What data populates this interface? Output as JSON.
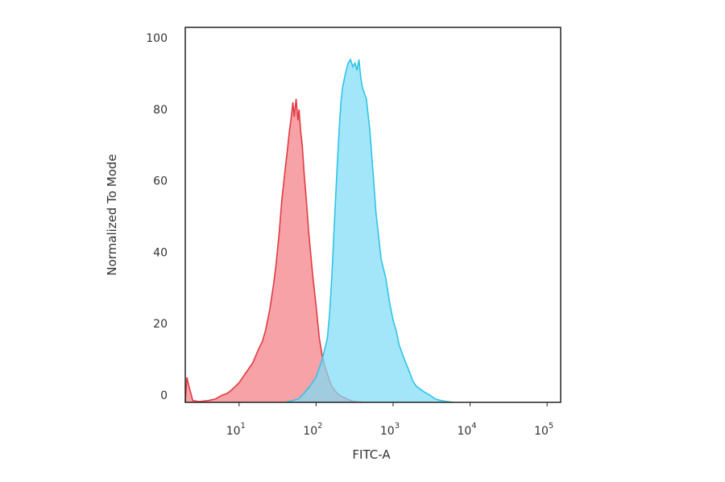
{
  "chart_data": {
    "type": "area",
    "xlabel": "FITC-A",
    "ylabel": "Normalized To Mode",
    "x_scale": "log",
    "xlim": [
      2,
      150000
    ],
    "ylim": [
      0,
      105
    ],
    "x_ticks": [
      {
        "value": 10,
        "base": "10",
        "exp": "1"
      },
      {
        "value": 100,
        "base": "10",
        "exp": "2"
      },
      {
        "value": 1000,
        "base": "10",
        "exp": "3"
      },
      {
        "value": 10000,
        "base": "10",
        "exp": "4"
      },
      {
        "value": 100000,
        "base": "10",
        "exp": "5"
      }
    ],
    "y_ticks": [
      "0",
      "20",
      "40",
      "60",
      "80",
      "100"
    ],
    "y_tick_values": [
      0,
      20,
      40,
      60,
      80,
      100
    ],
    "grid": false,
    "series": [
      {
        "color": "#e23a44",
        "fill": "#f47e84",
        "x": [
          2,
          2.1,
          2.2,
          2.5,
          3,
          4,
          5,
          6,
          7,
          8,
          9,
          10,
          12,
          15,
          18,
          20,
          22,
          25,
          28,
          30,
          33,
          36,
          40,
          43,
          45,
          47,
          50,
          52,
          55,
          58,
          60,
          63,
          66,
          70,
          75,
          80,
          90,
          100,
          110,
          120,
          130,
          140,
          150,
          160,
          180,
          200,
          250,
          300,
          400
        ],
        "y": [
          0,
          7,
          5,
          0.5,
          0.2,
          0.5,
          1,
          2,
          2.5,
          3.5,
          4.5,
          5.5,
          8,
          11,
          15,
          17,
          20,
          26,
          33,
          38,
          47,
          57,
          66,
          72,
          76,
          79,
          84,
          80,
          85,
          79,
          82,
          76,
          72,
          64,
          56,
          48,
          36,
          27,
          18,
          13,
          10,
          8,
          6,
          4.5,
          3,
          2,
          1,
          0.3,
          0
        ]
      },
      {
        "color": "#2ec4e8",
        "fill": "#7fdcf6",
        "x": [
          40,
          60,
          80,
          100,
          120,
          140,
          150,
          160,
          170,
          180,
          190,
          200,
          210,
          220,
          240,
          260,
          280,
          300,
          320,
          340,
          360,
          380,
          400,
          450,
          500,
          550,
          600,
          700,
          800,
          900,
          1000,
          1100,
          1200,
          1400,
          1600,
          1800,
          2000,
          2500,
          3000,
          3500,
          4000,
          5000,
          6000
        ],
        "y": [
          0,
          1,
          4,
          7,
          12,
          18,
          25,
          35,
          47,
          58,
          68,
          77,
          84,
          88,
          92,
          95,
          96,
          94,
          95,
          93,
          96,
          91,
          88,
          85,
          76,
          64,
          53,
          40,
          35,
          28,
          23,
          20,
          16,
          12,
          9,
          6,
          4.5,
          3,
          2,
          1,
          0.6,
          0.2,
          0
        ]
      }
    ]
  }
}
